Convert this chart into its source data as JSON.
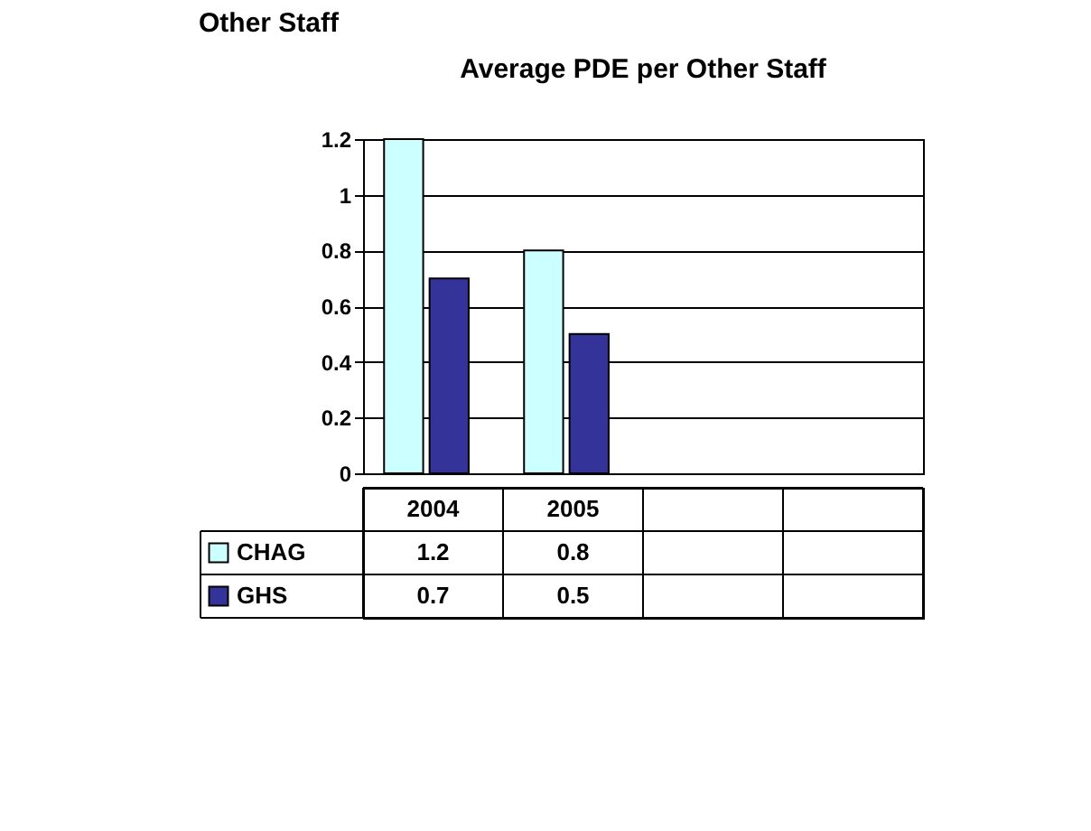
{
  "chart_data": {
    "type": "bar",
    "title": "Average PDE per Other Staff",
    "annotations": [
      "Other Staff"
    ],
    "categories": [
      "2004",
      "2005",
      null,
      null
    ],
    "series": [
      {
        "name": "CHAG",
        "color": "#ccffff",
        "values": [
          1.2,
          0.8,
          null,
          null
        ]
      },
      {
        "name": "GHS",
        "color": "#333399",
        "values": [
          0.7,
          0.5,
          null,
          null
        ]
      }
    ],
    "ylim": [
      0,
      1.2
    ],
    "yticks": [
      0,
      0.2,
      0.4,
      0.6,
      0.8,
      1,
      1.2
    ],
    "grid": "y",
    "data_labels": true,
    "legend": "bottom"
  }
}
